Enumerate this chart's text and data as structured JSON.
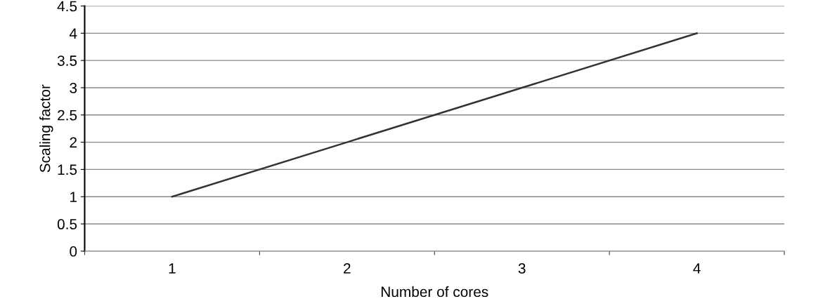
{
  "chart_data": {
    "type": "line",
    "xlabel": "Number of cores",
    "ylabel": "Scaling factor",
    "categories": [
      "1",
      "2",
      "3",
      "4"
    ],
    "series": [
      {
        "color": "#333333",
        "values": [
          1,
          2,
          3,
          4
        ]
      }
    ],
    "ylim": [
      0,
      4.5
    ],
    "yticks": [
      0,
      0.5,
      1,
      1.5,
      2,
      2.5,
      3,
      3.5,
      4,
      4.5
    ],
    "grid": "y",
    "legend": false,
    "marker": "none",
    "line_style": "solid"
  }
}
